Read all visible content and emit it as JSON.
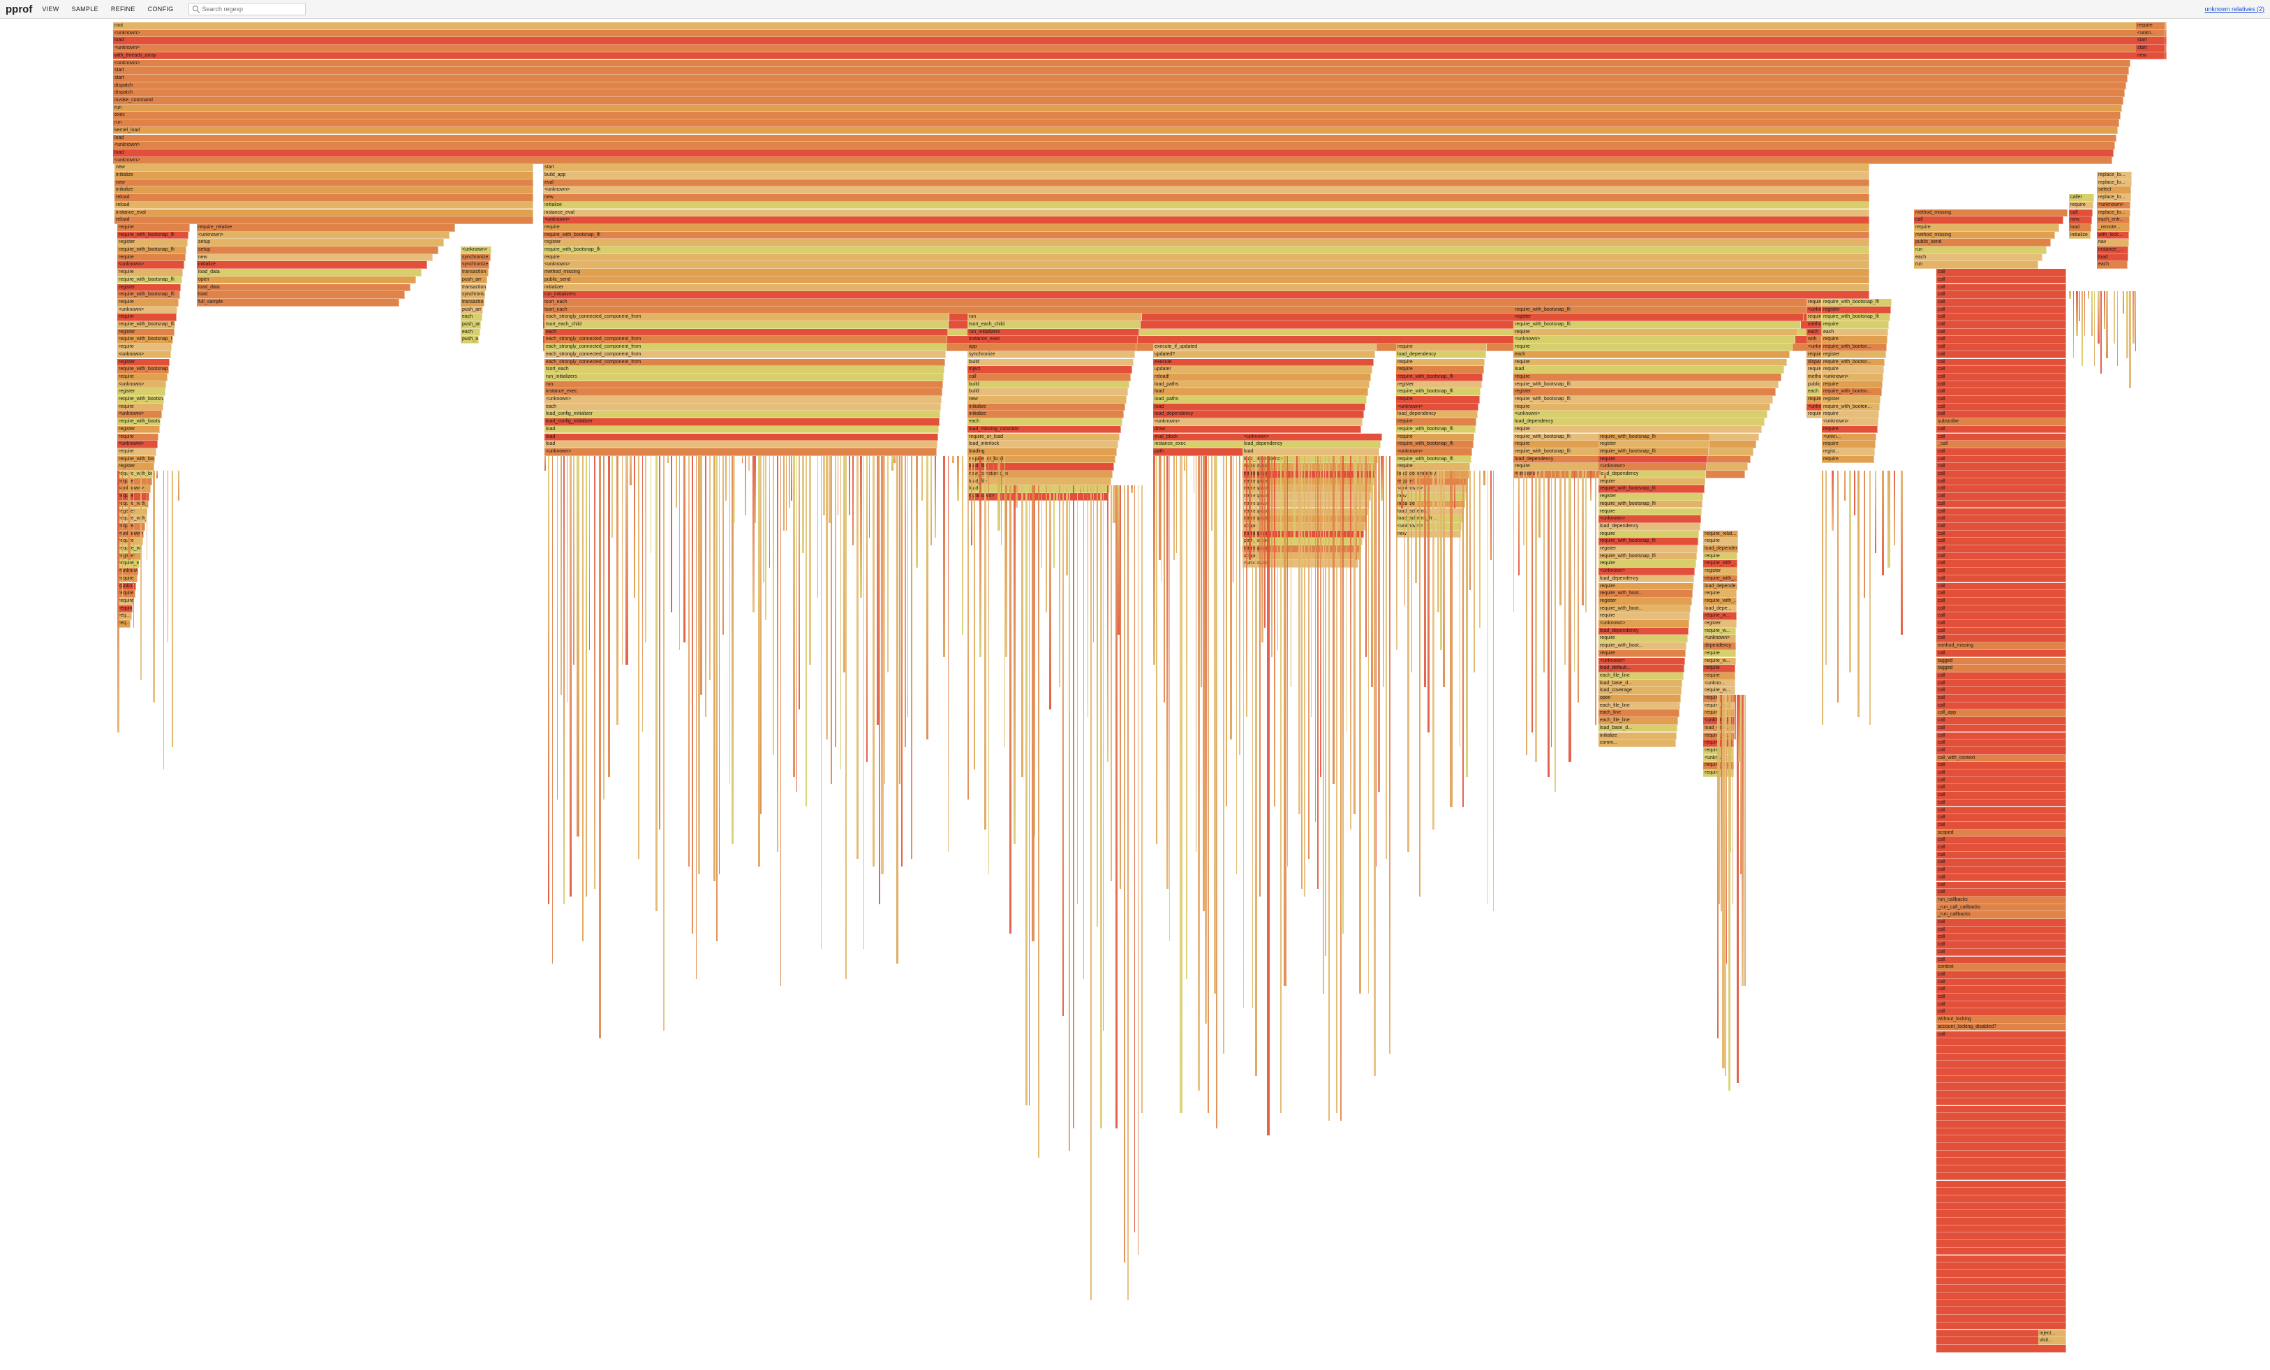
{
  "app": {
    "brand": "pprof",
    "menu": [
      "VIEW",
      "SAMPLE",
      "REFINE",
      "CONFIG"
    ],
    "search": {
      "value": "",
      "placeholder": "Search regexp"
    },
    "user_link": "unknown relatives (2)"
  },
  "palette": {
    "gold": "#e3b366",
    "amber": "#e0a050",
    "orange": "#e08348",
    "red": "#e2503a",
    "yellow": "#d8cf6c",
    "pink": "#e6a6b0",
    "beige": "#e6bd7a"
  },
  "flame": {
    "root_stack": [
      {
        "label": "root",
        "c": "gold"
      },
      {
        "label": "<unknown>",
        "c": "orange"
      },
      {
        "label": "load",
        "c": "red"
      },
      {
        "label": "<unknown>",
        "c": "orange"
      },
      {
        "label": "with_threads_array",
        "c": "red"
      },
      {
        "label": "<unknown>",
        "c": "orange"
      },
      {
        "label": "start",
        "c": "orange"
      },
      {
        "label": "start",
        "c": "orange"
      },
      {
        "label": "dispatch",
        "c": "orange"
      },
      {
        "label": "dispatch",
        "c": "orange"
      },
      {
        "label": "invoke_command",
        "c": "orange"
      },
      {
        "label": "run",
        "c": "amber"
      },
      {
        "label": "exec",
        "c": "orange"
      },
      {
        "label": "run",
        "c": "orange"
      },
      {
        "label": "kernel_load",
        "c": "amber"
      },
      {
        "label": "load",
        "c": "orange"
      },
      {
        "label": "<unknown>",
        "c": "orange"
      },
      {
        "label": "load",
        "c": "red"
      },
      {
        "label": "<unknown>",
        "c": "orange"
      }
    ],
    "right_tail": [
      "require",
      "<unkn...",
      "start",
      "start",
      "new"
    ],
    "col_a_header": [
      "new",
      "initialize",
      "new",
      "initialize",
      "reload",
      "reload",
      "instance_eval",
      "reload"
    ],
    "col_a_stack": [
      "require",
      "require_with_bootsnap_lfi",
      "register",
      "require_with_bootsnap_lfi",
      "require",
      "<unknown>",
      "require",
      "require_with_bootsnap_lfi",
      "register",
      "require_with_bootsnap_lfi",
      "require",
      "<unknown>",
      "require",
      "require_with_bootsnap_lfi",
      "register",
      "require_with_bootsnap_lfi",
      "require",
      "<unknown>",
      "register",
      "require_with_bootsnap_lfi",
      "require",
      "<unknown>",
      "register",
      "require_with_bootsnap_lfi",
      "require",
      "<unknown>",
      "require_with_bootsnap_lfi",
      "register",
      "require",
      "<unknown>",
      "require",
      "require_with_booten...",
      "register",
      "require_with_booten...",
      "require",
      "<unknown>",
      "require",
      "require_with_bootsn...",
      "register",
      "require_with_bootsn...",
      "require",
      "<unknown>",
      "require",
      "require_with_boo...",
      "register",
      "require_with_boo...",
      "<unknown>",
      "require",
      "<unkn...",
      "require",
      "require",
      "require",
      "req...",
      "req..."
    ],
    "col_a_side": [
      "require_relative",
      "<unknown>",
      "setup",
      "setup",
      "new",
      "initialize",
      "load_data",
      "open",
      "load_data",
      "load",
      "full_sample"
    ],
    "col_a_side2": [
      "<unknown>",
      "synchronize",
      "synchronize",
      "transaction",
      "push_arr",
      "transaction",
      "synchronize",
      "transaction",
      "push_arr",
      "each",
      "push_arr",
      "each",
      "push_arr"
    ],
    "col_b_header": [
      "start",
      "build_app",
      "eval",
      "<unknown>",
      "new",
      "initialize",
      "instance_eval",
      "<unknown>",
      "require",
      "require_with_bootsnap_lfi",
      "register",
      "require_with_bootsnap_lfi",
      "require",
      "<unknown>",
      "method_missing",
      "public_send",
      "initializer",
      "run_initializers",
      "tsort_each",
      "tsort_each",
      "each_strongly_connected_component",
      "call",
      "each",
      "each_strongly_connected_component",
      "each_strongly_connected_component_from"
    ],
    "col_b_stack": [
      "each_strongly_connected_component_from",
      "tsort_each_child",
      "each",
      "each_strongly_connected_component_from",
      "each_strongly_connected_component_from",
      "each_strongly_connected_component_from",
      "each_strongly_connected_component_from",
      "tsort_each",
      "run_initializers",
      "run",
      "instance_exec",
      "<unknown>",
      "each",
      "load_config_initializer",
      "load_config_initializer",
      "load",
      "load",
      "load",
      "<unknown>"
    ],
    "col_b_sub": [
      "run",
      "tsort_each_child",
      "run_initializers",
      "instance_exec",
      "app",
      "synchronize",
      "build",
      "inject",
      "call",
      "build",
      "build",
      "new",
      "initialize",
      "initialize",
      "each",
      "load_missing_constant",
      "require_or_load",
      "load_interlock",
      "loading",
      "require_or_load",
      "load_file",
      "new_constants_in",
      "load_file",
      "load",
      "<unknown>"
    ],
    "col_c": [
      "execute_if_updated",
      "updated?",
      "execute",
      "updater",
      "reload!",
      "load_paths",
      "load",
      "load_paths",
      "load",
      "load_dependency",
      "<unknown>",
      "draw",
      "eval_block",
      "instance_exec",
      "path"
    ],
    "col_c2": [
      "<unknown>",
      "load_dependency",
      "load",
      "load_dependency",
      "<unknown>",
      "namespace",
      "namespace",
      "namespace",
      "namespace",
      "namespace",
      "namespace",
      "namespace",
      "scope",
      "namespace",
      "path_scope",
      "namespace",
      "scope",
      "<unknown>"
    ],
    "col_d": [
      "require",
      "load_dependency",
      "require",
      "require",
      "require_with_bootsnap_lfi",
      "register",
      "require_with_bootsnap_lfi",
      "require",
      "<unknown>",
      "load_dependency",
      "require",
      "require_with_bootsnap_lfi",
      "require",
      "require_with_bootsnap_lfi",
      "<unknown>",
      "require_with_bootsnap_lfi",
      "require",
      "load_dependency",
      "require",
      "<unknown>",
      "new",
      "initialize",
      "load_schema",
      "load_schema_fr...",
      "<unknown>",
      "new"
    ],
    "col_e": [
      "require_with_bootsnap_lfi",
      "register",
      "require_with_bootsnap_lfi",
      "require",
      "<unknown>",
      "require",
      "each",
      "require",
      "load",
      "require",
      "require_with_bootsnap_lfi",
      "register",
      "require_with_bootsnap_lfi",
      "require",
      "<unknown>",
      "load_dependency",
      "require",
      "require_with_bootsnap_lfi",
      "require",
      "require_with_bootsnap_lfi",
      "load_dependency",
      "require",
      "<unknown>"
    ],
    "col_f": [
      "require_with_bootsnap_lfi",
      "register",
      "require_with_bootsnap_lfi",
      "require",
      "<unknown>",
      "load_dependency",
      "require",
      "require_with_bootsnap_lfi",
      "register",
      "require_with_bootsnap_lfi",
      "require",
      "<unknown>",
      "load_dependency",
      "require",
      "require_with_bootsnap_lfi",
      "register",
      "require_with_bootsnap_lfi",
      "require",
      "<unknown>",
      "load_dependency",
      "require",
      "require_with_boot...",
      "register",
      "require_with_boot...",
      "require",
      "<unknown>",
      "load_dependency",
      "require",
      "require_with_boot...",
      "require",
      "<unknown>",
      "load_default...",
      "each_file_line",
      "load_base_d...",
      "load_coverage",
      "open",
      "each_file_line",
      "each_line",
      "each_file_line",
      "load_base_d...",
      "initialize",
      "comm..."
    ],
    "col_g": [
      "require_relat...",
      "require",
      "load_dependency",
      "require",
      "require_with_...",
      "register",
      "require_with_...",
      "load_depende...",
      "require",
      "require_with_...",
      "load_depe...",
      "require_w...",
      "register",
      "require_w...",
      "<unknown>",
      "dependency",
      "require",
      "require_w...",
      "require",
      "require",
      "<unkno...",
      "require_w...",
      "require",
      "require_w...",
      "require",
      "<unknown>",
      "load_dep...",
      "require_w...",
      "require",
      "require",
      "<unkn...",
      "require_w...",
      "require"
    ],
    "col_h": [
      "require_with_bootsnap_lfi",
      "register",
      "require_with_bootsnap_lfi",
      "require",
      "each",
      "require",
      "require_with_bootsn...",
      "register",
      "require_with_bootsn...",
      "require",
      "<unknown>",
      "require",
      "require_with_bootsn...",
      "register",
      "require_with_booten...",
      "require",
      "<unknown>",
      "require",
      "<unkn...",
      "require",
      "regist...",
      "require"
    ],
    "col_i": [
      "require",
      "<unknown>",
      "require",
      "method_missing",
      "each",
      "with",
      "<unknown>",
      "require",
      "dispatch",
      "require",
      "method_missing",
      "public_send",
      "each",
      "require",
      "<unknown>",
      "require"
    ],
    "col_j": [
      "method_missing",
      "call",
      "require",
      "method_missing",
      "public_send",
      "run",
      "each",
      "run"
    ],
    "col_j_stack": [
      "call",
      "call",
      "call",
      "call",
      "call",
      "call",
      "call",
      "call",
      "call",
      "call",
      "call",
      "call",
      "call",
      "call",
      "call",
      "call",
      "call",
      "call",
      "call",
      "call",
      "subscribe",
      "call",
      "call",
      "_call",
      "call",
      "call",
      "call",
      "call",
      "call",
      "call",
      "call",
      "call",
      "call",
      "call",
      "call",
      "call",
      "call",
      "call",
      "call",
      "call",
      "call",
      "call",
      "call",
      "call",
      "call",
      "call",
      "call",
      "call",
      "call",
      "call",
      "method_missing",
      "call",
      "tagged",
      "tagged",
      "call",
      "call",
      "call",
      "call",
      "call",
      "call_app",
      "call",
      "call",
      "call",
      "call",
      "call",
      "call_with_context",
      "call",
      "call",
      "call",
      "call",
      "call",
      "call",
      "call",
      "call",
      "call",
      "scoped",
      "call",
      "call",
      "call",
      "call",
      "call",
      "call",
      "call",
      "call",
      "run_callbacks",
      "_run_call_callbacks",
      "_run_callbacks",
      "call",
      "call",
      "call",
      "call",
      "call",
      "call",
      "context",
      "call",
      "call",
      "call",
      "call",
      "call",
      "call",
      "without_locking",
      "account_locking_disabled?",
      "call"
    ],
    "col_k": [
      "replace_lo...",
      "replace_lo...",
      "select",
      "replace_lo...",
      "<unknown>",
      "replace_lo...",
      "each_entr...",
      "_remote...",
      "with_lock...",
      "nav",
      "instance_...",
      "load",
      "each"
    ],
    "col_k2": [
      "caller",
      "require",
      "call",
      "new",
      "load",
      "initialize"
    ],
    "bottom_labels": [
      "inject...",
      "visit..."
    ]
  }
}
